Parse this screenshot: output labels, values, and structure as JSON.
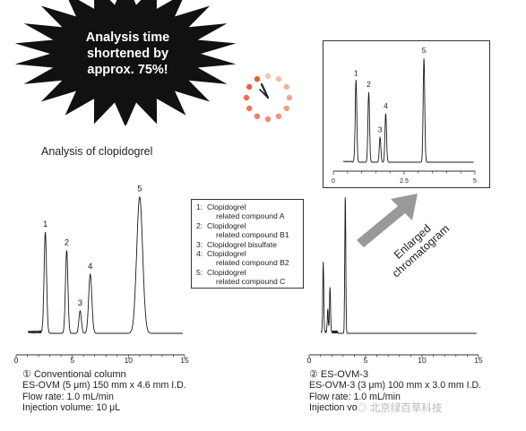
{
  "banner": {
    "lines": [
      "Analysis time",
      "shortened by",
      "approx. 75%!"
    ],
    "color": "#111111"
  },
  "clock": {
    "color": "#e8522a"
  },
  "title": "Analysis of clopidogrel",
  "legend": [
    {
      "num": "1:",
      "lines": [
        "Clopidogrel",
        "related compound A"
      ]
    },
    {
      "num": "2:",
      "lines": [
        "Clopidogrel",
        "related compound B1"
      ]
    },
    {
      "num": "3:",
      "lines": [
        "Clopidogrel bisulfate"
      ]
    },
    {
      "num": "4:",
      "lines": [
        "Clopidogrel",
        "related compound B2"
      ]
    },
    {
      "num": "5:",
      "lines": [
        "Clopidogrel",
        "related compound C"
      ]
    }
  ],
  "arrow": {
    "label_line1": "Enlarged",
    "label_line2": "chromatogram",
    "color": "#999999"
  },
  "left_caption": {
    "title": "① Conventional column",
    "line2": "ES-OVM (5 μm) 150 mm x 4.6 mm I.D.",
    "line3": "Flow rate: 1.0 mL/min",
    "line4": "Injection volume: 10 μL"
  },
  "right_caption": {
    "title": "② ES-OVM-3",
    "line2": "ES-OVM-3 (3 μm) 100 mm x 3.0 mm I.D.",
    "line3": "Flow rate: 1.0 mL/min",
    "line4": "Injection vo"
  },
  "watermark": "北京绿百草科技",
  "chart_data": [
    {
      "type": "line",
      "name": "conventional",
      "xlim": [
        0,
        15
      ],
      "xticks": [
        0,
        5,
        10,
        15
      ],
      "peaks": [
        {
          "label": "1",
          "x": 2.6,
          "height": 0.72
        },
        {
          "label": "2",
          "x": 4.5,
          "height": 0.59
        },
        {
          "label": "3",
          "x": 5.7,
          "height": 0.16
        },
        {
          "label": "4",
          "x": 6.6,
          "height": 0.42
        },
        {
          "label": "5",
          "x": 11.0,
          "height": 0.97
        }
      ]
    },
    {
      "type": "line",
      "name": "es-ovm-3",
      "xlim": [
        0,
        15
      ],
      "xticks": [
        0,
        5,
        10,
        15
      ],
      "peaks": [
        {
          "label": "",
          "x": 0.8,
          "height": 0.58
        },
        {
          "label": "",
          "x": 1.25,
          "height": 0.5
        },
        {
          "label": "",
          "x": 1.65,
          "height": 0.16
        },
        {
          "label": "",
          "x": 1.85,
          "height": 0.32
        },
        {
          "label": "",
          "x": 3.2,
          "height": 0.98
        }
      ]
    },
    {
      "type": "line",
      "name": "enlarged",
      "xlim": [
        0,
        5
      ],
      "xticks": [
        0,
        2.5,
        5
      ],
      "tick_labels": [
        "0",
        "2.5",
        "5"
      ],
      "peaks": [
        {
          "label": "1",
          "x": 0.8,
          "height": 0.72
        },
        {
          "label": "2",
          "x": 1.25,
          "height": 0.62
        },
        {
          "label": "3",
          "x": 1.65,
          "height": 0.22
        },
        {
          "label": "4",
          "x": 1.85,
          "height": 0.43
        },
        {
          "label": "5",
          "x": 3.2,
          "height": 0.92
        }
      ]
    }
  ]
}
